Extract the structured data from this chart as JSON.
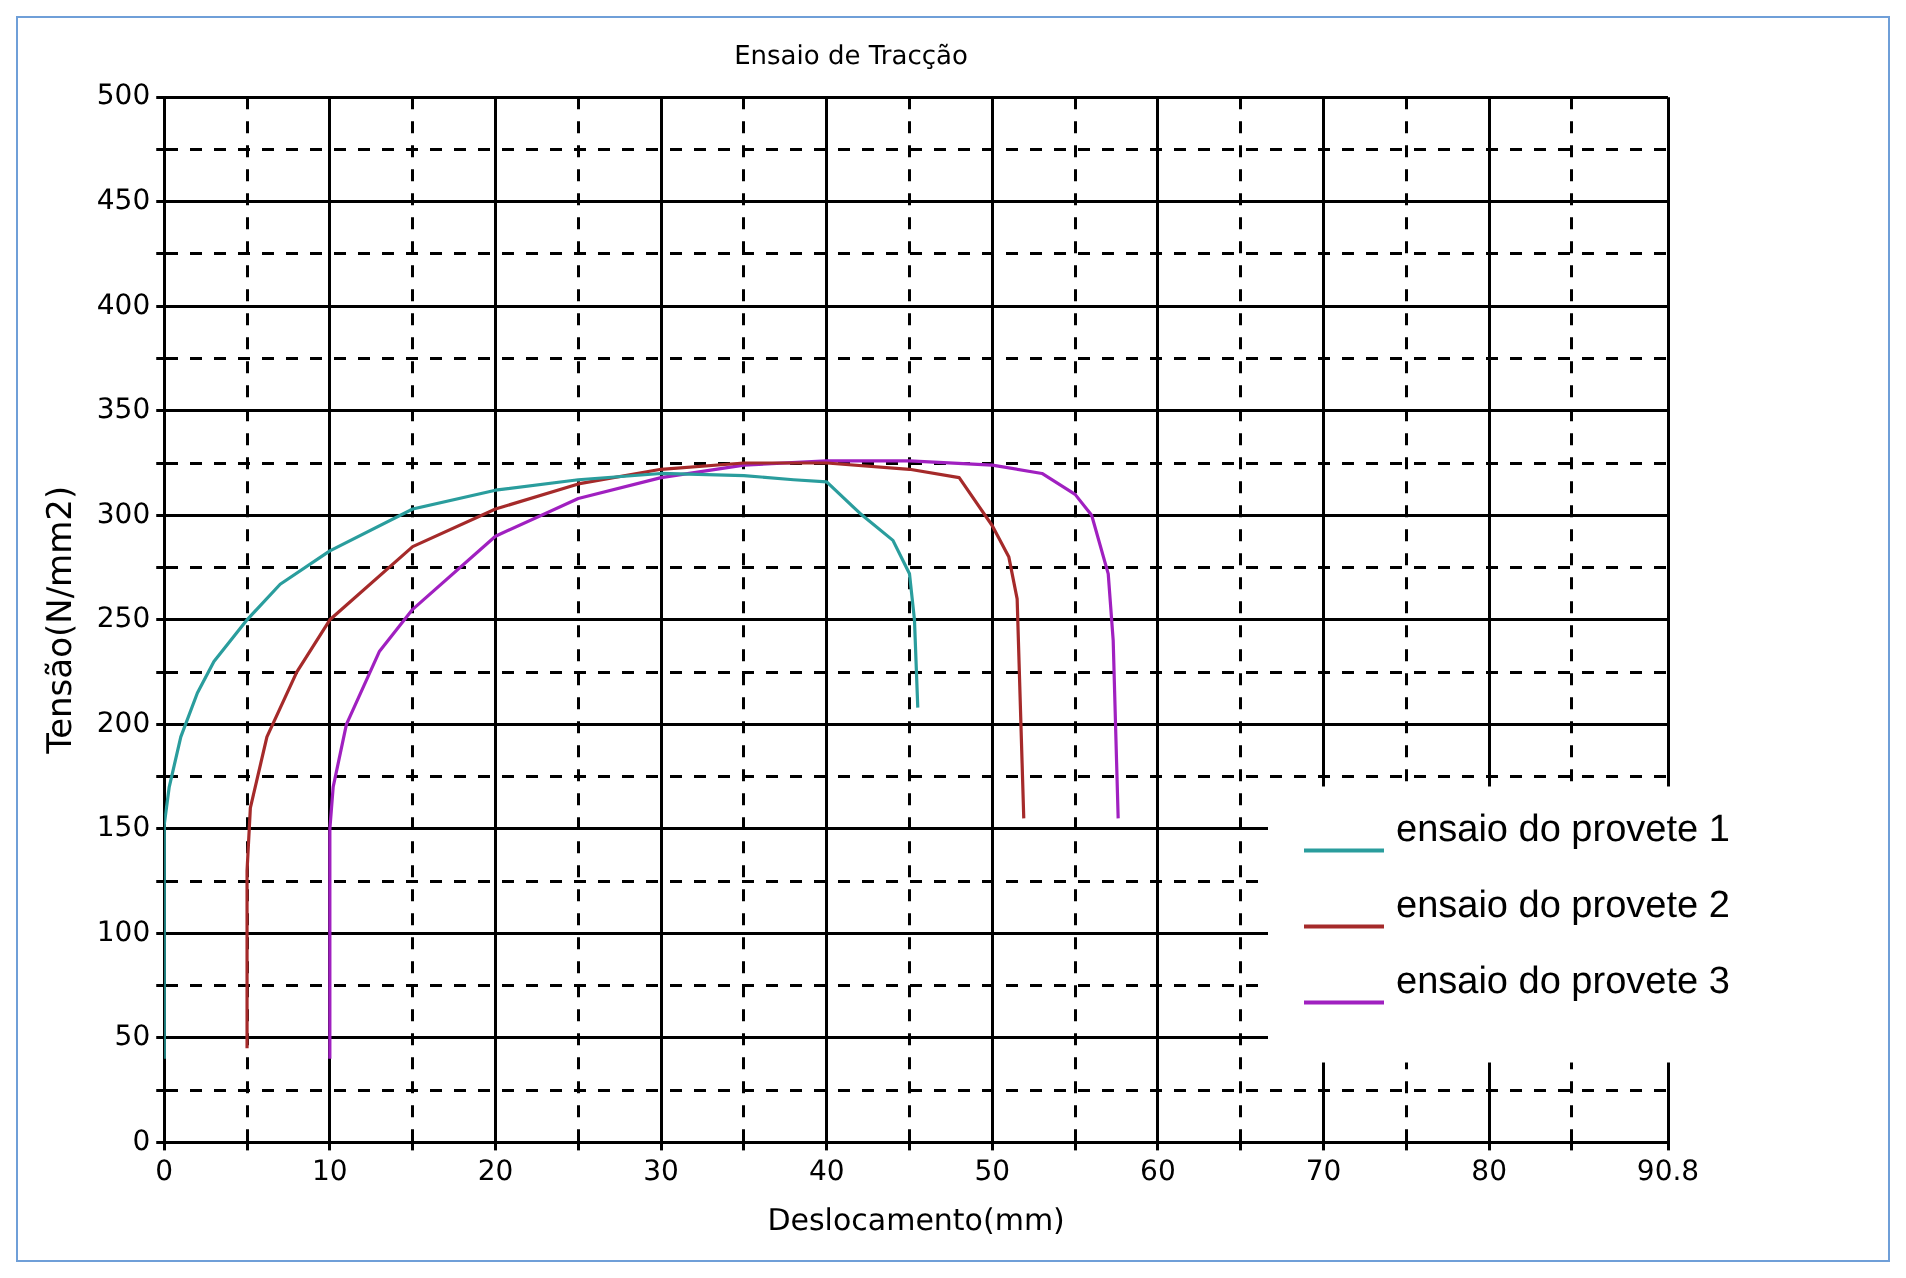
{
  "chart_data": {
    "type": "line",
    "title": "Ensaio de Tracção",
    "xlabel": "Deslocamento(mm)",
    "ylabel": "Tensão(N/mm2)",
    "xlim": [
      0,
      90.8
    ],
    "xticks": [
      0,
      {
        "value": 5,
        "label": null
      },
      10,
      {
        "value": 15,
        "label": null
      },
      20,
      {
        "value": 25,
        "label": null
      },
      30,
      {
        "value": 35,
        "label": null
      },
      40,
      {
        "value": 45,
        "label": null
      },
      50,
      {
        "value": 55,
        "label": null
      },
      60,
      {
        "value": 65,
        "label": null
      },
      70,
      {
        "value": 75,
        "label": null
      },
      80,
      {
        "value": 85,
        "label": null
      },
      90.8
    ],
    "ylim": [
      0,
      500
    ],
    "yticks": [
      0,
      {
        "value": 25,
        "label": null
      },
      50,
      {
        "value": 75,
        "label": null
      },
      100,
      {
        "value": 125,
        "label": null
      },
      150,
      {
        "value": 175,
        "label": null
      },
      200,
      {
        "value": 225,
        "label": null
      },
      250,
      {
        "value": 275,
        "label": null
      },
      300,
      {
        "value": 325,
        "label": null
      },
      350,
      {
        "value": 375,
        "label": null
      },
      400,
      {
        "value": 425,
        "label": null
      },
      450,
      {
        "value": 475,
        "label": null
      },
      500
    ],
    "grid": true,
    "legend": "bottom right",
    "marker": "none",
    "line_style": "solid",
    "series": [
      {
        "name": "ensaio do provete 1",
        "color": "#2a9d9d",
        "x": [
          0,
          0,
          0.3,
          1,
          2,
          3,
          5,
          7,
          10,
          15,
          20,
          25,
          30,
          35,
          38,
          40,
          42,
          44,
          45,
          45.3,
          45.5
        ],
        "values": [
          40,
          152,
          170,
          194,
          215,
          230,
          250,
          267,
          283,
          303,
          312,
          317,
          320,
          319,
          317,
          316,
          301,
          288,
          272,
          250,
          208
        ]
      },
      {
        "name": "ensaio do provete 2",
        "color": "#a52a2a",
        "x": [
          5,
          5,
          5.2,
          6.2,
          8,
          10,
          15,
          20,
          25,
          30,
          35,
          40,
          45,
          48,
          50,
          51,
          51.5,
          51.9
        ],
        "values": [
          45,
          130,
          160,
          194,
          225,
          250,
          285,
          303,
          315,
          322,
          325,
          325,
          322,
          318,
          295,
          280,
          260,
          155
        ]
      },
      {
        "name": "ensaio do provete 3",
        "color": "#a020c0",
        "x": [
          10,
          10,
          10.2,
          11,
          13,
          15,
          20,
          25,
          30,
          35,
          40,
          45,
          50,
          53,
          55,
          56,
          57,
          57.3,
          57.6
        ],
        "values": [
          40,
          150,
          170,
          200,
          235,
          255,
          290,
          308,
          318,
          324,
          326,
          326,
          324,
          320,
          310,
          300,
          272,
          240,
          155
        ]
      }
    ]
  }
}
